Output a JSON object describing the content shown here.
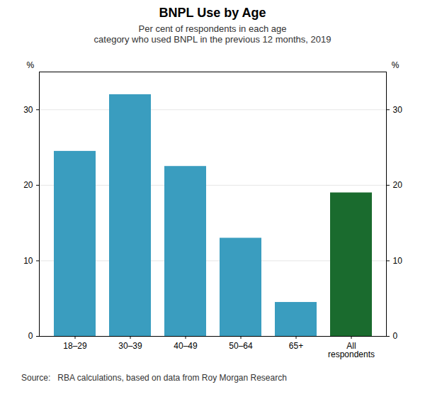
{
  "chart_data": {
    "type": "bar",
    "title": "BNPL Use by Age",
    "subtitle": "Per cent of respondents in each age\ncategory who used BNPL in the previous 12 months, 2019",
    "categories": [
      "18–29",
      "30–39",
      "40–49",
      "50–64",
      "65+",
      "All\nrespondents"
    ],
    "values": [
      24.5,
      32.0,
      22.5,
      13.0,
      4.5,
      19.0
    ],
    "colors": [
      "#3a9dbf",
      "#3a9dbf",
      "#3a9dbf",
      "#3a9dbf",
      "#3a9dbf",
      "#1a6b2e"
    ],
    "ylim": [
      0,
      35
    ],
    "yticks": [
      0,
      10,
      20,
      30
    ],
    "y2lim": [
      0,
      35
    ],
    "y2ticks": [
      0,
      10,
      20,
      30
    ],
    "ylabel": "%",
    "y2label": "%",
    "source": "Source:   RBA calculations, based on data from Roy Morgan Research",
    "grid": true
  }
}
